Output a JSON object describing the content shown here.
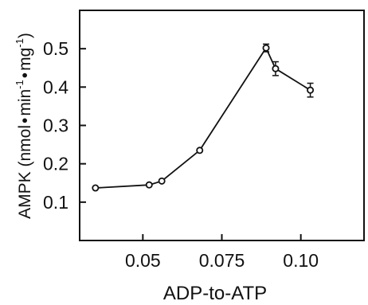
{
  "chart_data": {
    "type": "line",
    "xlabel": "ADP-to-ATP",
    "ylabel_prefix": "AMPK (nmol",
    "ylabel_min": "min",
    "ylabel_mg": "mg",
    "ylabel_exp": "-1",
    "ylabel_close": ")",
    "ylabel_dot": "•",
    "xlim": [
      0.03,
      0.12
    ],
    "ylim": [
      0.0,
      0.6
    ],
    "xticks": [
      {
        "value": 0.05,
        "label": "0.05"
      },
      {
        "value": 0.075,
        "label": "0.075"
      },
      {
        "value": 0.1,
        "label": "0.10"
      }
    ],
    "yticks": [
      {
        "value": 0.1,
        "label": "0.1"
      },
      {
        "value": 0.2,
        "label": "0.2"
      },
      {
        "value": 0.3,
        "label": "0.3"
      },
      {
        "value": 0.4,
        "label": "0.4"
      },
      {
        "value": 0.5,
        "label": "0.5"
      }
    ],
    "grid": false,
    "series": [
      {
        "points": [
          {
            "x": 0.035,
            "y": 0.137,
            "err": 0.0
          },
          {
            "x": 0.052,
            "y": 0.145,
            "err": 0.0
          },
          {
            "x": 0.056,
            "y": 0.155,
            "err": 0.0
          },
          {
            "x": 0.068,
            "y": 0.235,
            "err": 0.0
          },
          {
            "x": 0.089,
            "y": 0.502,
            "err": 0.01
          },
          {
            "x": 0.092,
            "y": 0.448,
            "err": 0.018
          },
          {
            "x": 0.103,
            "y": 0.392,
            "err": 0.018
          }
        ]
      }
    ]
  }
}
